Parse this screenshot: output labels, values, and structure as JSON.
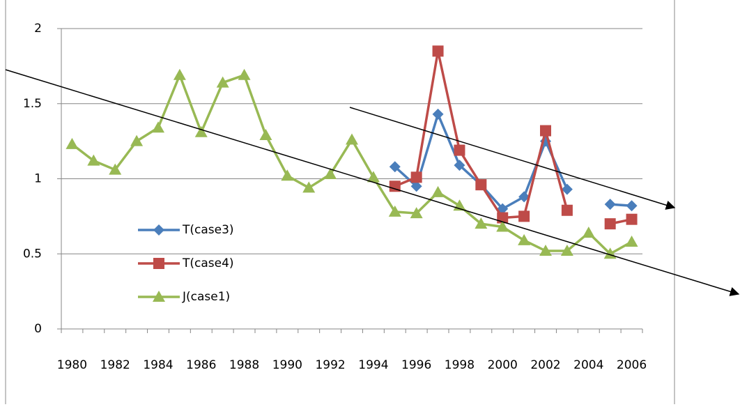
{
  "chart_data": {
    "type": "line",
    "categories": [
      "1980",
      null,
      "1982",
      null,
      "1984",
      null,
      "1986",
      null,
      "1988",
      null,
      "1990",
      null,
      "1992",
      null,
      "1994",
      null,
      "1996",
      null,
      "1998",
      null,
      "2000",
      null,
      "2002",
      null,
      "2004",
      null,
      "2006"
    ],
    "series": [
      {
        "name": "T(case3)",
        "color": "#4a7ebb",
        "marker": "diamond",
        "values": [
          null,
          null,
          null,
          null,
          null,
          null,
          null,
          null,
          null,
          null,
          null,
          null,
          null,
          null,
          null,
          1.08,
          0.95,
          1.43,
          1.09,
          0.96,
          0.8,
          0.88,
          1.25,
          0.93,
          null,
          0.83,
          0.82
        ]
      },
      {
        "name": "T(case4)",
        "color": "#be4b48",
        "marker": "square",
        "values": [
          null,
          null,
          null,
          null,
          null,
          null,
          null,
          null,
          null,
          null,
          null,
          null,
          null,
          null,
          null,
          0.95,
          1.01,
          1.85,
          1.19,
          0.96,
          0.74,
          0.75,
          1.32,
          0.79,
          null,
          0.7,
          0.73
        ]
      },
      {
        "name": "J(case1)",
        "color": "#98b954",
        "marker": "triangle",
        "values": [
          1.23,
          1.12,
          1.06,
          1.25,
          1.34,
          1.69,
          1.31,
          1.64,
          1.69,
          1.29,
          1.02,
          0.94,
          1.03,
          1.26,
          1.01,
          0.78,
          0.77,
          0.91,
          0.82,
          0.7,
          0.68,
          0.59,
          0.52,
          0.52,
          0.64,
          0.5,
          0.58
        ]
      }
    ],
    "ylim": [
      0,
      2
    ],
    "yticks": [
      0,
      0.5,
      1,
      1.5,
      2
    ],
    "grid": true
  }
}
